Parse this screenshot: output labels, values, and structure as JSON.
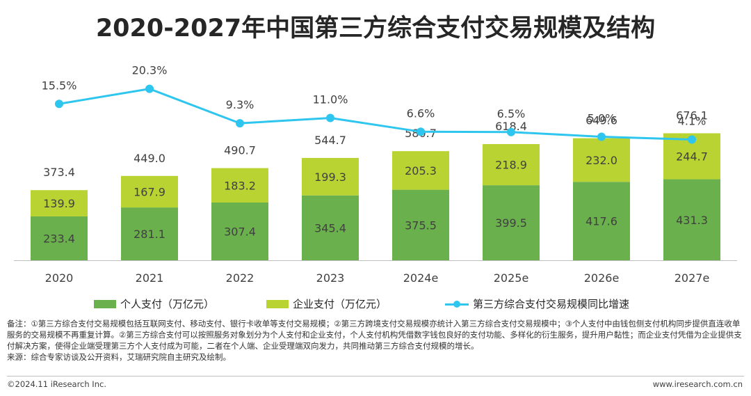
{
  "title": "2020-2027年中国第三方综合支付交易规模及结构",
  "chart_data": {
    "type": "bar",
    "stacked": true,
    "categories": [
      "2020",
      "2021",
      "2022",
      "2023",
      "2024e",
      "2025e",
      "2026e",
      "2027e"
    ],
    "series": [
      {
        "name": "个人支付（万亿元）",
        "color": "#6ab04c",
        "values": [
          233.4,
          281.1,
          307.4,
          345.4,
          375.5,
          399.5,
          417.6,
          431.3
        ]
      },
      {
        "name": "企业支付（万亿元）",
        "color": "#b9d432",
        "values": [
          139.9,
          167.9,
          183.2,
          199.3,
          205.3,
          218.9,
          232.0,
          244.7
        ]
      }
    ],
    "totals": [
      373.4,
      449.0,
      490.7,
      544.7,
      580.7,
      618.4,
      649.6,
      676.1
    ],
    "line_series": {
      "name": "第三方综合支付交易规模同比增速",
      "color": "#2ec5ef",
      "values": [
        15.5,
        20.3,
        9.3,
        11.0,
        6.6,
        6.5,
        5.0,
        4.1
      ],
      "labels": [
        "15.5%",
        "20.3%",
        "9.3%",
        "11.0%",
        "6.6%",
        "6.5%",
        "5.0%",
        "4.1%"
      ]
    },
    "legend_position": "bottom",
    "grid": false
  },
  "notes": {
    "remark": "备注：①第三方综合支付交易规模包括互联网支付、移动支付、银行卡收单等支付交易规模；②第三方跨境支付交易规模亦统计入第三方综合支付交易规模中；③个人支付中由钱包侧支付机构同步提供直连收单服务的交易规模不再重复计算。②第三方综合支付可以按照服务对象划分为个人支付和企业支付，个人支付机构凭借数字钱包良好的支付功能、多样化的衍生服务，提升用户黏性；而企业支付凭借为企业提供支付解决方案，使得企业端受理第三方个人支付成为可能，二者在个人端、企业受理端双向发力，共同推动第三方综合支付规模的增长。",
    "source": "来源：综合专家访谈及公开资料，艾瑞研究院自主研究及绘制。"
  },
  "footer": {
    "copyright": "©2024.11 iResearch Inc.",
    "website": "www.iresearch.com.cn"
  }
}
